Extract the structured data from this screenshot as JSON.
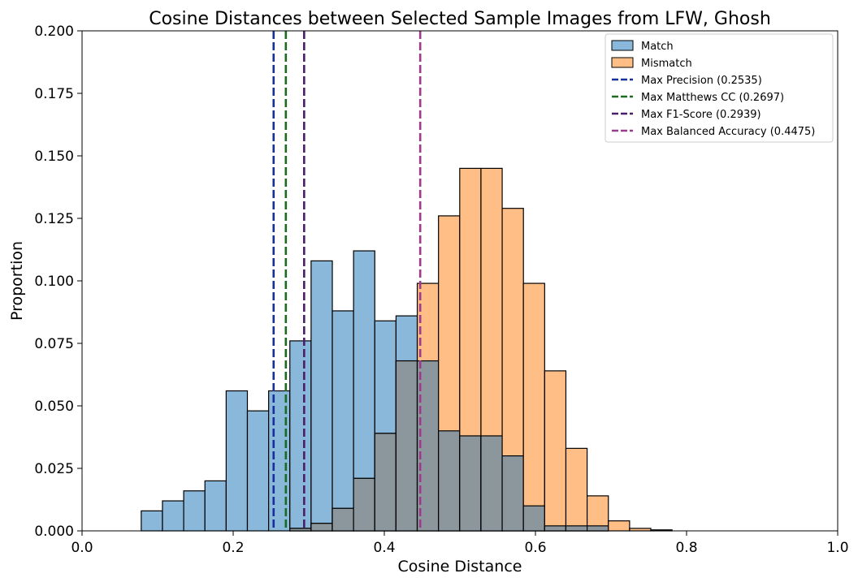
{
  "chart_data": {
    "type": "histogram",
    "title": "Cosine Distances between Selected Sample Images from LFW, Ghosh",
    "xlabel": "Cosine Distance",
    "ylabel": "Proportion",
    "xlim": [
      0.0,
      1.0
    ],
    "ylim": [
      0.0,
      0.2
    ],
    "xticks": [
      "0.0",
      "0.2",
      "0.4",
      "0.6",
      "0.8",
      "1.0"
    ],
    "yticks": [
      "0.000",
      "0.025",
      "0.050",
      "0.075",
      "0.100",
      "0.125",
      "0.150",
      "0.175",
      "0.200"
    ],
    "grid": false,
    "legend_position": "top-right",
    "bin_start": 0.0783,
    "bin_width": 0.0281,
    "series": [
      {
        "name": "Match",
        "color": "#1f77b4",
        "fill_color": "#8ab8da",
        "values": [
          0.008,
          0.012,
          0.016,
          0.02,
          0.056,
          0.048,
          0.056,
          0.076,
          0.108,
          0.088,
          0.112,
          0.084,
          0.086,
          0.068,
          0.04,
          0.038,
          0.038,
          0.03,
          0.01,
          0.002,
          0.002,
          0.002,
          0.0,
          0.0,
          0.0
        ]
      },
      {
        "name": "Mismatch",
        "color": "#ff7f0e",
        "fill_color": "#ffbe86",
        "values": [
          0.0,
          0.0,
          0.0,
          0.0,
          0.0,
          0.0,
          0.0,
          0.001,
          0.003,
          0.009,
          0.021,
          0.039,
          0.068,
          0.099,
          0.126,
          0.145,
          0.145,
          0.129,
          0.099,
          0.064,
          0.033,
          0.014,
          0.004,
          0.001,
          0.0004
        ]
      }
    ],
    "overlap_color": "#8c979d",
    "thresholds": [
      {
        "name": "Max Precision (0.2535)",
        "x": 0.2535,
        "color": "#18309a"
      },
      {
        "name": "Max Matthews CC (0.2697)",
        "x": 0.2697,
        "color": "#1a6b1f"
      },
      {
        "name": "Max F1-Score (0.2939)",
        "x": 0.2939,
        "color": "#4a1f6a"
      },
      {
        "name": "Max Balanced Accuracy (0.4475)",
        "x": 0.4475,
        "color": "#9c3a8c"
      }
    ]
  }
}
